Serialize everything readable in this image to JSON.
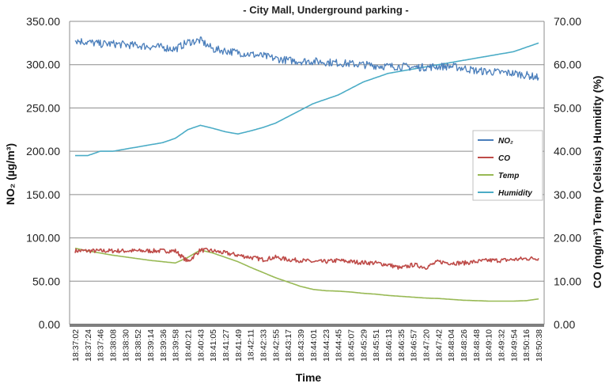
{
  "chart_data": {
    "type": "line",
    "title": "- City Mall, Underground parking -",
    "xlabel": "Time",
    "ylabel_left": "NO₂ (µg/m³)",
    "ylabel_right": "CO (mg/m³)  Temp (Celsius)  Humidity (%)",
    "ylim_left": [
      0,
      350
    ],
    "ylim_right": [
      0,
      70
    ],
    "yticks_left": [
      "0.00",
      "50.00",
      "100.00",
      "150.00",
      "200.00",
      "250.00",
      "300.00",
      "350.00"
    ],
    "yticks_right": [
      "0.00",
      "10.00",
      "20.00",
      "30.00",
      "40.00",
      "50.00",
      "60.00",
      "70.00"
    ],
    "grid": true,
    "legend_position": "right-middle",
    "x_categories": [
      "18:37:02",
      "18:37:24",
      "18:37:46",
      "18:38:08",
      "18:38:30",
      "18:38:52",
      "18:39:14",
      "18:39:36",
      "18:39:58",
      "18:40:21",
      "18:40:43",
      "18:41:05",
      "18:41:27",
      "18:41:49",
      "18:42:11",
      "18:42:33",
      "18:42:55",
      "18:43:17",
      "18:43:39",
      "18:44:01",
      "18:44:23",
      "18:44:45",
      "18:45:07",
      "18:45:29",
      "18:45:51",
      "18:46:13",
      "18:46:35",
      "18:46:57",
      "18:47:20",
      "18:47:42",
      "18:48:04",
      "18:48:26",
      "18:48:48",
      "18:49:10",
      "18:49:32",
      "18:49:54",
      "18:50:16",
      "18:50:38"
    ],
    "series": [
      {
        "name": "NO₂",
        "axis": "left",
        "color": "#4a7ebb",
        "values": [
          328,
          326,
          324,
          324,
          323,
          322,
          321,
          320,
          318,
          326,
          328,
          318,
          316,
          314,
          312,
          310,
          307,
          305,
          304,
          304,
          303,
          302,
          301,
          300,
          299,
          298,
          298,
          297,
          297,
          298,
          298,
          296,
          293,
          292,
          291,
          290,
          288,
          285
        ]
      },
      {
        "name": "CO",
        "axis": "right",
        "color": "#be4b48",
        "values": [
          17,
          17,
          17,
          17,
          17,
          17,
          17,
          17,
          17,
          14.5,
          17.2,
          17,
          16.5,
          16,
          15.5,
          15,
          15.5,
          15,
          14.8,
          14.5,
          14.5,
          14.8,
          14.5,
          14.3,
          14.2,
          13.8,
          13,
          13.8,
          13.2,
          14.5,
          14.2,
          14.2,
          14.5,
          14.8,
          14.8,
          15,
          15.2,
          15.3
        ]
      },
      {
        "name": "Temp",
        "axis": "right",
        "color": "#98b954",
        "values": [
          17.6,
          17,
          16.5,
          16,
          15.6,
          15.2,
          14.8,
          14.5,
          14.2,
          15.5,
          17.2,
          16.5,
          15.5,
          14.5,
          13.2,
          12,
          10.8,
          9.8,
          8.8,
          8.1,
          7.8,
          7.7,
          7.5,
          7.2,
          7,
          6.7,
          6.5,
          6.3,
          6.1,
          6,
          5.8,
          5.6,
          5.5,
          5.4,
          5.4,
          5.4,
          5.5,
          5.9
        ]
      },
      {
        "name": "Humidity",
        "axis": "right",
        "color": "#4bacc6",
        "values": [
          39,
          39,
          40,
          40,
          40.5,
          41,
          41.5,
          42,
          43,
          45,
          46,
          45.3,
          44.5,
          44,
          44.7,
          45.5,
          46.5,
          48,
          49.5,
          51,
          52,
          53,
          54.5,
          56,
          57,
          58,
          58.5,
          59,
          59.5,
          60,
          60.5,
          61,
          61.5,
          62,
          62.5,
          63,
          64,
          65
        ]
      }
    ]
  }
}
